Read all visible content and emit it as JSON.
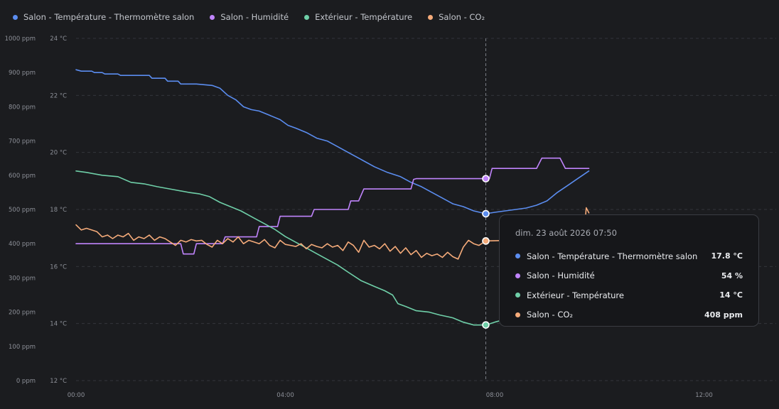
{
  "legend": [
    {
      "name": "Salon - Température - Thermomètre salon",
      "color": "#5b8df0"
    },
    {
      "name": "Salon - Humidité",
      "color": "#c084fc"
    },
    {
      "name": "Extérieur - Température",
      "color": "#6fcfa8"
    },
    {
      "name": "Salon - CO₂",
      "color": "#f5ab7a"
    }
  ],
  "tooltip": {
    "title": "dim. 23 août 2026 07:50",
    "rows": [
      {
        "label": "Salon - Température - Thermomètre salon",
        "value": "17.8 °C",
        "color": "#5b8df0"
      },
      {
        "label": "Salon - Humidité",
        "value": "54 %",
        "color": "#c084fc"
      },
      {
        "label": "Extérieur - Température",
        "value": "14 °C",
        "color": "#6fcfa8"
      },
      {
        "label": "Salon - CO₂",
        "value": "408 ppm",
        "color": "#f5ab7a"
      }
    ]
  },
  "chart_data": {
    "type": "line",
    "x_unit": "hours",
    "xlim": [
      0,
      13.5
    ],
    "x_ticks": [
      0,
      4,
      8,
      12
    ],
    "x_tick_labels": [
      "00:00",
      "04:00",
      "08:00",
      "12:00"
    ],
    "y_left_ticks": [
      "0 ppm",
      "100 ppm",
      "200 ppm",
      "300 ppm",
      "400 ppm",
      "500 ppm",
      "600 ppm",
      "700 ppm",
      "800 ppm",
      "900 ppm",
      "1000 ppm"
    ],
    "y_left_range": [
      0,
      1000
    ],
    "y_right_ticks": [
      "12 °C",
      "14 °C",
      "16 °C",
      "18 °C",
      "20 °C",
      "22 °C",
      "24 °C"
    ],
    "y_right_range": [
      12,
      24
    ],
    "cursor_x": 7.83,
    "grid": true,
    "series": [
      {
        "name": "Salon - Température - Thermomètre salon",
        "color": "#5b8df0",
        "axis": "temp",
        "points": [
          [
            0,
            22.9
          ],
          [
            0.1,
            22.85
          ],
          [
            0.3,
            22.85
          ],
          [
            0.35,
            22.8
          ],
          [
            0.5,
            22.8
          ],
          [
            0.55,
            22.75
          ],
          [
            0.8,
            22.75
          ],
          [
            0.85,
            22.7
          ],
          [
            1.4,
            22.7
          ],
          [
            1.45,
            22.6
          ],
          [
            1.7,
            22.6
          ],
          [
            1.75,
            22.5
          ],
          [
            1.95,
            22.5
          ],
          [
            2.0,
            22.4
          ],
          [
            2.3,
            22.4
          ],
          [
            2.6,
            22.35
          ],
          [
            2.75,
            22.25
          ],
          [
            2.9,
            22.0
          ],
          [
            3.05,
            21.85
          ],
          [
            3.2,
            21.6
          ],
          [
            3.35,
            21.5
          ],
          [
            3.5,
            21.45
          ],
          [
            3.7,
            21.3
          ],
          [
            3.9,
            21.15
          ],
          [
            4.05,
            20.95
          ],
          [
            4.2,
            20.85
          ],
          [
            4.4,
            20.7
          ],
          [
            4.6,
            20.5
          ],
          [
            4.8,
            20.4
          ],
          [
            5.0,
            20.2
          ],
          [
            5.2,
            20.0
          ],
          [
            5.45,
            19.75
          ],
          [
            5.7,
            19.5
          ],
          [
            5.95,
            19.3
          ],
          [
            6.2,
            19.15
          ],
          [
            6.4,
            18.95
          ],
          [
            6.6,
            18.8
          ],
          [
            6.8,
            18.6
          ],
          [
            7.0,
            18.4
          ],
          [
            7.2,
            18.2
          ],
          [
            7.4,
            18.1
          ],
          [
            7.6,
            17.95
          ],
          [
            7.83,
            17.85
          ],
          [
            8.0,
            17.9
          ],
          [
            8.2,
            17.95
          ],
          [
            8.4,
            18.0
          ],
          [
            8.6,
            18.05
          ],
          [
            8.8,
            18.15
          ],
          [
            9.0,
            18.3
          ],
          [
            9.2,
            18.6
          ],
          [
            9.4,
            18.85
          ],
          [
            9.6,
            19.1
          ],
          [
            9.8,
            19.35
          ]
        ]
      },
      {
        "name": "Salon - Humidité",
        "color": "#c084fc",
        "axis": "ppm",
        "points": [
          [
            0,
            400
          ],
          [
            1.9,
            400
          ],
          [
            2.0,
            400
          ],
          [
            2.05,
            370
          ],
          [
            2.25,
            370
          ],
          [
            2.3,
            400
          ],
          [
            2.8,
            400
          ],
          [
            2.85,
            420
          ],
          [
            3.45,
            420
          ],
          [
            3.5,
            450
          ],
          [
            3.85,
            450
          ],
          [
            3.9,
            480
          ],
          [
            4.5,
            480
          ],
          [
            4.55,
            500
          ],
          [
            5.2,
            500
          ],
          [
            5.25,
            525
          ],
          [
            5.4,
            525
          ],
          [
            5.5,
            560
          ],
          [
            6.4,
            560
          ],
          [
            6.45,
            588
          ],
          [
            6.5,
            590
          ],
          [
            7.83,
            590
          ],
          [
            7.9,
            590
          ],
          [
            7.95,
            620
          ],
          [
            8.8,
            620
          ],
          [
            8.9,
            650
          ],
          [
            9.25,
            650
          ],
          [
            9.35,
            620
          ],
          [
            9.8,
            620
          ]
        ]
      },
      {
        "name": "Extérieur - Température",
        "color": "#6fcfa8",
        "axis": "temp",
        "points": [
          [
            0,
            19.35
          ],
          [
            0.2,
            19.3
          ],
          [
            0.5,
            19.2
          ],
          [
            0.8,
            19.15
          ],
          [
            1.05,
            18.95
          ],
          [
            1.3,
            18.9
          ],
          [
            1.55,
            18.8
          ],
          [
            1.85,
            18.7
          ],
          [
            2.15,
            18.6
          ],
          [
            2.35,
            18.55
          ],
          [
            2.55,
            18.45
          ],
          [
            2.75,
            18.25
          ],
          [
            2.95,
            18.1
          ],
          [
            3.15,
            17.95
          ],
          [
            3.4,
            17.7
          ],
          [
            3.6,
            17.5
          ],
          [
            3.8,
            17.3
          ],
          [
            4.0,
            17.05
          ],
          [
            4.2,
            16.85
          ],
          [
            4.4,
            16.65
          ],
          [
            4.6,
            16.45
          ],
          [
            4.8,
            16.25
          ],
          [
            5.0,
            16.05
          ],
          [
            5.2,
            15.8
          ],
          [
            5.45,
            15.5
          ],
          [
            5.7,
            15.3
          ],
          [
            5.9,
            15.15
          ],
          [
            6.05,
            15.0
          ],
          [
            6.15,
            14.7
          ],
          [
            6.3,
            14.6
          ],
          [
            6.5,
            14.45
          ],
          [
            6.75,
            14.4
          ],
          [
            6.95,
            14.3
          ],
          [
            7.2,
            14.2
          ],
          [
            7.4,
            14.05
          ],
          [
            7.6,
            13.95
          ],
          [
            7.83,
            13.95
          ],
          [
            8.0,
            14.05
          ],
          [
            8.1,
            14.1
          ]
        ]
      },
      {
        "name": "Salon - CO₂",
        "color": "#f5ab7a",
        "axis": "ppm",
        "points": [
          [
            0,
            455
          ],
          [
            0.1,
            440
          ],
          [
            0.2,
            445
          ],
          [
            0.3,
            440
          ],
          [
            0.4,
            435
          ],
          [
            0.5,
            420
          ],
          [
            0.6,
            425
          ],
          [
            0.7,
            415
          ],
          [
            0.8,
            425
          ],
          [
            0.9,
            420
          ],
          [
            1.0,
            430
          ],
          [
            1.1,
            410
          ],
          [
            1.2,
            420
          ],
          [
            1.3,
            415
          ],
          [
            1.4,
            425
          ],
          [
            1.5,
            410
          ],
          [
            1.6,
            420
          ],
          [
            1.7,
            415
          ],
          [
            1.8,
            405
          ],
          [
            1.9,
            395
          ],
          [
            2.0,
            410
          ],
          [
            2.1,
            405
          ],
          [
            2.2,
            412
          ],
          [
            2.3,
            408
          ],
          [
            2.4,
            410
          ],
          [
            2.5,
            398
          ],
          [
            2.6,
            390
          ],
          [
            2.7,
            410
          ],
          [
            2.8,
            400
          ],
          [
            2.9,
            415
          ],
          [
            3.0,
            405
          ],
          [
            3.1,
            420
          ],
          [
            3.2,
            400
          ],
          [
            3.3,
            410
          ],
          [
            3.4,
            405
          ],
          [
            3.5,
            400
          ],
          [
            3.6,
            412
          ],
          [
            3.7,
            395
          ],
          [
            3.8,
            388
          ],
          [
            3.9,
            410
          ],
          [
            4.0,
            398
          ],
          [
            4.1,
            395
          ],
          [
            4.2,
            392
          ],
          [
            4.3,
            400
          ],
          [
            4.4,
            385
          ],
          [
            4.5,
            398
          ],
          [
            4.6,
            392
          ],
          [
            4.7,
            388
          ],
          [
            4.8,
            400
          ],
          [
            4.9,
            390
          ],
          [
            5.0,
            395
          ],
          [
            5.1,
            380
          ],
          [
            5.2,
            405
          ],
          [
            5.3,
            395
          ],
          [
            5.4,
            375
          ],
          [
            5.5,
            410
          ],
          [
            5.6,
            390
          ],
          [
            5.7,
            395
          ],
          [
            5.8,
            385
          ],
          [
            5.9,
            400
          ],
          [
            6.0,
            378
          ],
          [
            6.1,
            392
          ],
          [
            6.2,
            372
          ],
          [
            6.3,
            388
          ],
          [
            6.4,
            368
          ],
          [
            6.5,
            380
          ],
          [
            6.6,
            360
          ],
          [
            6.7,
            372
          ],
          [
            6.8,
            365
          ],
          [
            6.9,
            370
          ],
          [
            7.0,
            360
          ],
          [
            7.1,
            375
          ],
          [
            7.2,
            362
          ],
          [
            7.3,
            355
          ],
          [
            7.4,
            390
          ],
          [
            7.5,
            410
          ],
          [
            7.6,
            400
          ],
          [
            7.7,
            395
          ],
          [
            7.83,
            408
          ],
          [
            9.7,
            415
          ],
          [
            9.75,
            505
          ],
          [
            9.8,
            490
          ]
        ]
      }
    ]
  }
}
